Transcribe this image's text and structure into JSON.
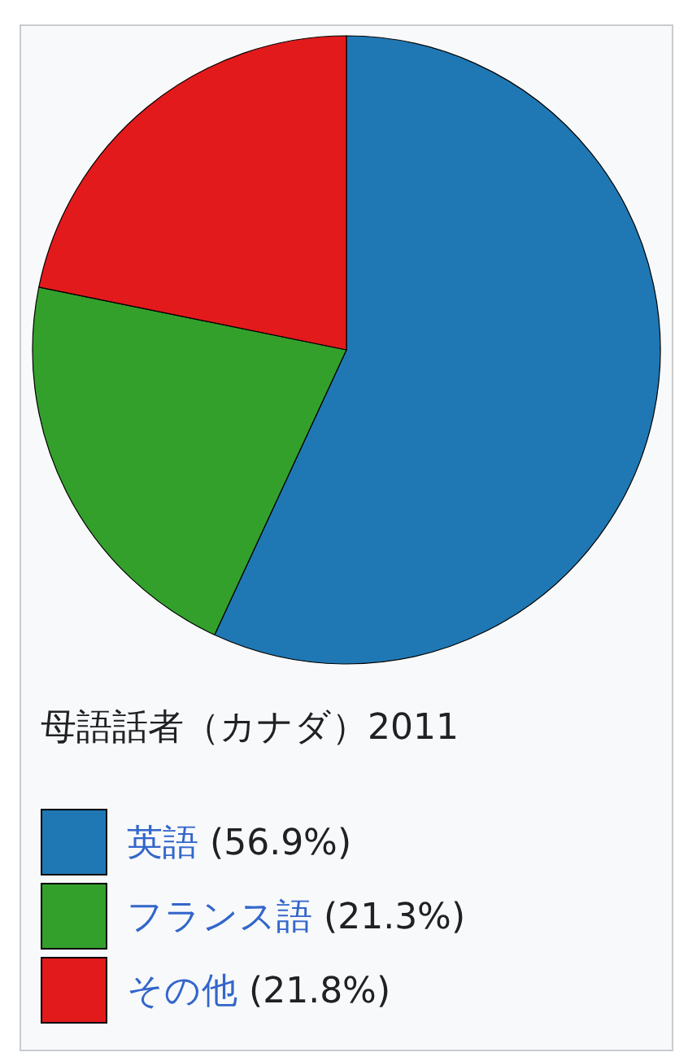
{
  "chart_data": {
    "type": "pie",
    "title": "母語話者（カナダ）2011",
    "categories": [
      "英語",
      "フランス語",
      "その他"
    ],
    "values": [
      56.9,
      21.3,
      21.8
    ],
    "colors": [
      "#1f78b4",
      "#33a02c",
      "#e31a1c"
    ],
    "value_labels": [
      "(56.9%)",
      "(21.3%)",
      "(21.8%)"
    ],
    "legend": "bottom"
  }
}
